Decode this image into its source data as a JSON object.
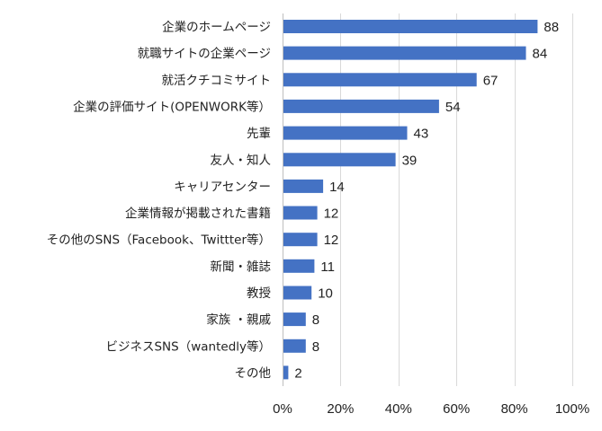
{
  "chart_data": {
    "type": "bar",
    "orientation": "horizontal",
    "categories": [
      "企業のホームページ",
      "就職サイトの企業ページ",
      "就活クチコミサイト",
      "企業の評価サイト(OPENWORK等）",
      "先輩",
      "友人・知人",
      "キャリアセンター",
      "企業情報が掲載された書籍",
      "その他のSNS（Facebook、Twittter等）",
      "新聞・雑誌",
      "教授",
      "家族 ・親戚",
      "ビジネスSNS（wantedly等）",
      "その他"
    ],
    "values": [
      88,
      84,
      67,
      54,
      43,
      39,
      14,
      12,
      12,
      11,
      10,
      8,
      8,
      2
    ],
    "value_labels": [
      "88",
      "84",
      "67",
      "54",
      "43",
      "39",
      "14",
      "12",
      "12",
      "11",
      "10",
      "8",
      "8",
      "2"
    ],
    "xlim": [
      0,
      100
    ],
    "xticks": [
      0,
      20,
      40,
      60,
      80,
      100
    ],
    "xtick_labels": [
      "0%",
      "20%",
      "40%",
      "60%",
      "80%",
      "100%"
    ],
    "grid": "vertical",
    "bar_color": "#4472C4",
    "grid_color": "#D9D9D9"
  }
}
